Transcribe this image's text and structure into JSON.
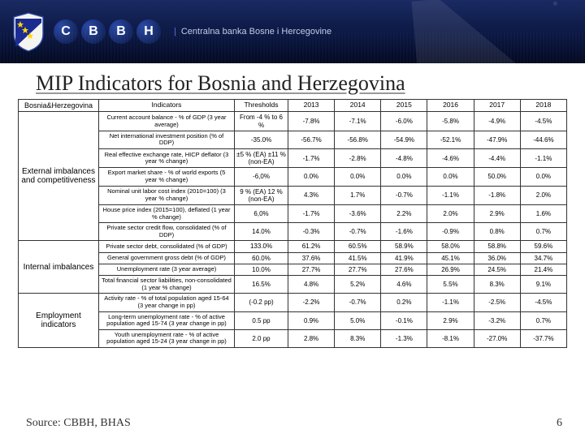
{
  "colors": {
    "header_bg_top": "#1a2a62",
    "header_bg_mid": "#0a1640",
    "header_bg_bot": "#030920",
    "accent_blue": "#2b4aa8",
    "text_dark": "#222222",
    "border": "#333333",
    "subtitle": "#d8defa"
  },
  "header": {
    "logo_letters": [
      "C",
      "B",
      "B",
      "H"
    ],
    "subtitle_left": "Centralna banka Bosne i Hercegovine"
  },
  "title": "MIP Indicators for Bosnia and Herzegovina",
  "source": "Source: CBBH, BHAS",
  "page_number": "6",
  "table": {
    "corner_label": "Bosnia&Herzegovina",
    "col_ind": "Indicators",
    "col_thr": "Thresholds",
    "years": [
      "2013",
      "2014",
      "2015",
      "2016",
      "2017",
      "2018"
    ],
    "groups": [
      {
        "name": "External imbalances and competitiveness",
        "rows": [
          {
            "indicator": "Current account balance - % of GDP (3 year average)",
            "threshold": "From -4 % to 6 %",
            "values": [
              "-7.8%",
              "-7.1%",
              "-6.0%",
              "-5.8%",
              "-4.9%",
              "-4.5%"
            ]
          },
          {
            "indicator": "Net international investment position (% of DDP)",
            "threshold": "-35.0%",
            "values": [
              "-56.7%",
              "-56.8%",
              "-54.9%",
              "-52.1%",
              "-47.9%",
              "-44.6%"
            ]
          },
          {
            "indicator": "Real effective exchange rate, HICP deflator (3 year % change)",
            "threshold": "±5 % (EA) ±11 % (non-EA)",
            "values": [
              "-1.7%",
              "-2.8%",
              "-4.8%",
              "-4.6%",
              "-4.4%",
              "-1.1%"
            ]
          },
          {
            "indicator": "Export market share - % of world exports (5 year % change)",
            "threshold": "-6,0%",
            "values": [
              "0.0%",
              "0.0%",
              "0.0%",
              "0.0%",
              "50.0%",
              "0.0%"
            ]
          },
          {
            "indicator": "Nominal unit labor cost index (2010=100) (3 year % change)",
            "threshold": "9 % (EA) 12 % (non-EA)",
            "values": [
              "4.3%",
              "1.7%",
              "-0.7%",
              "-1.1%",
              "-1.8%",
              "2.0%"
            ]
          },
          {
            "indicator": "House price index (2015=100), deflated (1 year % change)",
            "threshold": "6,0%",
            "values": [
              "-1.7%",
              "-3.6%",
              "2.2%",
              "2.0%",
              "2.9%",
              "1.6%"
            ]
          },
          {
            "indicator": "Private sector credit flow, consolidated (% of DDP)",
            "threshold": "14.0%",
            "values": [
              "-0.3%",
              "-0.7%",
              "-1.6%",
              "-0.9%",
              "0.8%",
              "0.7%"
            ]
          }
        ]
      },
      {
        "name": "Internal imbalances",
        "rows": [
          {
            "indicator": "Private sector debt, consolidated (% of GDP)",
            "threshold": "133.0%",
            "values": [
              "61.2%",
              "60.5%",
              "58.9%",
              "58.0%",
              "58.8%",
              "59.6%"
            ]
          },
          {
            "indicator": "General government gross debt (% of GDP)",
            "threshold": "60.0%",
            "values": [
              "37.6%",
              "41.5%",
              "41.9%",
              "45.1%",
              "36.0%",
              "34.7%"
            ]
          },
          {
            "indicator": "Unemployment rate (3 year average)",
            "threshold": "10.0%",
            "values": [
              "27.7%",
              "27.7%",
              "27.6%",
              "26.9%",
              "24.5%",
              "21.4%"
            ]
          },
          {
            "indicator": "Total financial sector liabilities, non-consolidated (1 year % change)",
            "threshold": "16.5%",
            "values": [
              "4.8%",
              "5.2%",
              "4.6%",
              "5.5%",
              "8.3%",
              "9.1%"
            ]
          }
        ]
      },
      {
        "name": "Employment indicators",
        "rows": [
          {
            "indicator": "Activity rate - % of total population aged 15-64 (3 year change in pp)",
            "threshold": "(-0.2 pp)",
            "values": [
              "-2.2%",
              "-0.7%",
              "0.2%",
              "-1.1%",
              "-2.5%",
              "-4.5%"
            ]
          },
          {
            "indicator": "Long-term unemployment rate - % of active population aged 15-74 (3 year change in pp)",
            "threshold": "0.5 pp",
            "values": [
              "0.9%",
              "5.0%",
              "-0.1%",
              "2.9%",
              "-3.2%",
              "0.7%"
            ]
          },
          {
            "indicator": "Youth unemployment rate - % of active population aged 15-24 (3 year change in pp)",
            "threshold": "2.0 pp",
            "values": [
              "2.8%",
              "8.3%",
              "-1.3%",
              "-8.1%",
              "-27.0%",
              "-37.7%"
            ]
          }
        ]
      }
    ]
  }
}
